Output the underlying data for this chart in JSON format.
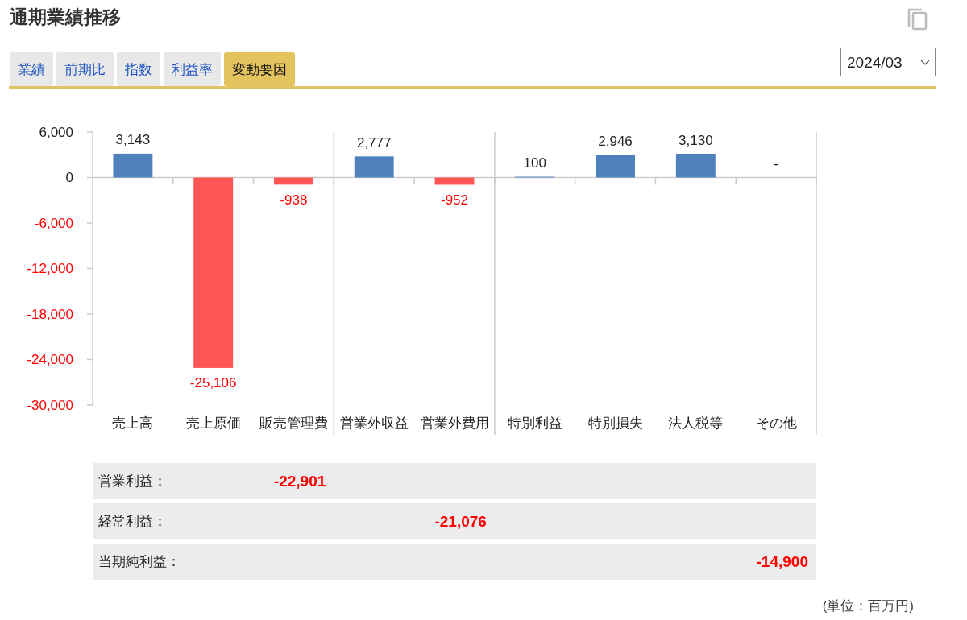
{
  "chart_data": [
    {
      "type": "other",
      "title": "通期業績推移",
      "subtitle": "2024/03",
      "annotations": [
        "業績",
        "前期比",
        "指数",
        "利益率",
        "変動要因"
      ]
    },
    {
      "type": "bar",
      "categories": [
        "売上高",
        "売上原価",
        "販売管理費",
        "営業外収益",
        "営業外費用",
        "特別利益",
        "特別損失",
        "法人税等",
        "その他"
      ],
      "values": [
        3143,
        -25106,
        -938,
        2777,
        -952,
        100,
        2946,
        3130,
        null
      ],
      "colors": [
        "#4f81bd",
        "#ff5555",
        "#ff5555",
        "#4f81bd",
        "#ff5555",
        "#4f81bd",
        "#4f81bd",
        "#4f81bd",
        "#4f81bd"
      ],
      "value_labels": [
        "3,143",
        "-25,106",
        "-938",
        "2,777",
        "-952",
        "100",
        "2,946",
        "3,130",
        "-"
      ],
      "ylim": [
        -30000,
        6000
      ],
      "yticks": [
        {
          "value": 6000,
          "label": "6,000"
        },
        0,
        {
          "value": -6000,
          "label": "-6,000"
        },
        {
          "value": -12000,
          "label": "-12,000"
        },
        {
          "value": -18000,
          "label": "-18,000"
        },
        {
          "value": -24000,
          "label": "-24,000"
        },
        {
          "value": -30000,
          "label": "-30,000"
        }
      ]
    },
    {
      "type": "other",
      "annotations": [
        "営業利益：",
        "-22,901",
        "経常利益：",
        "-21,076",
        "当期純利益：",
        "-14,900",
        "(単位：百万円)"
      ]
    }
  ]
}
